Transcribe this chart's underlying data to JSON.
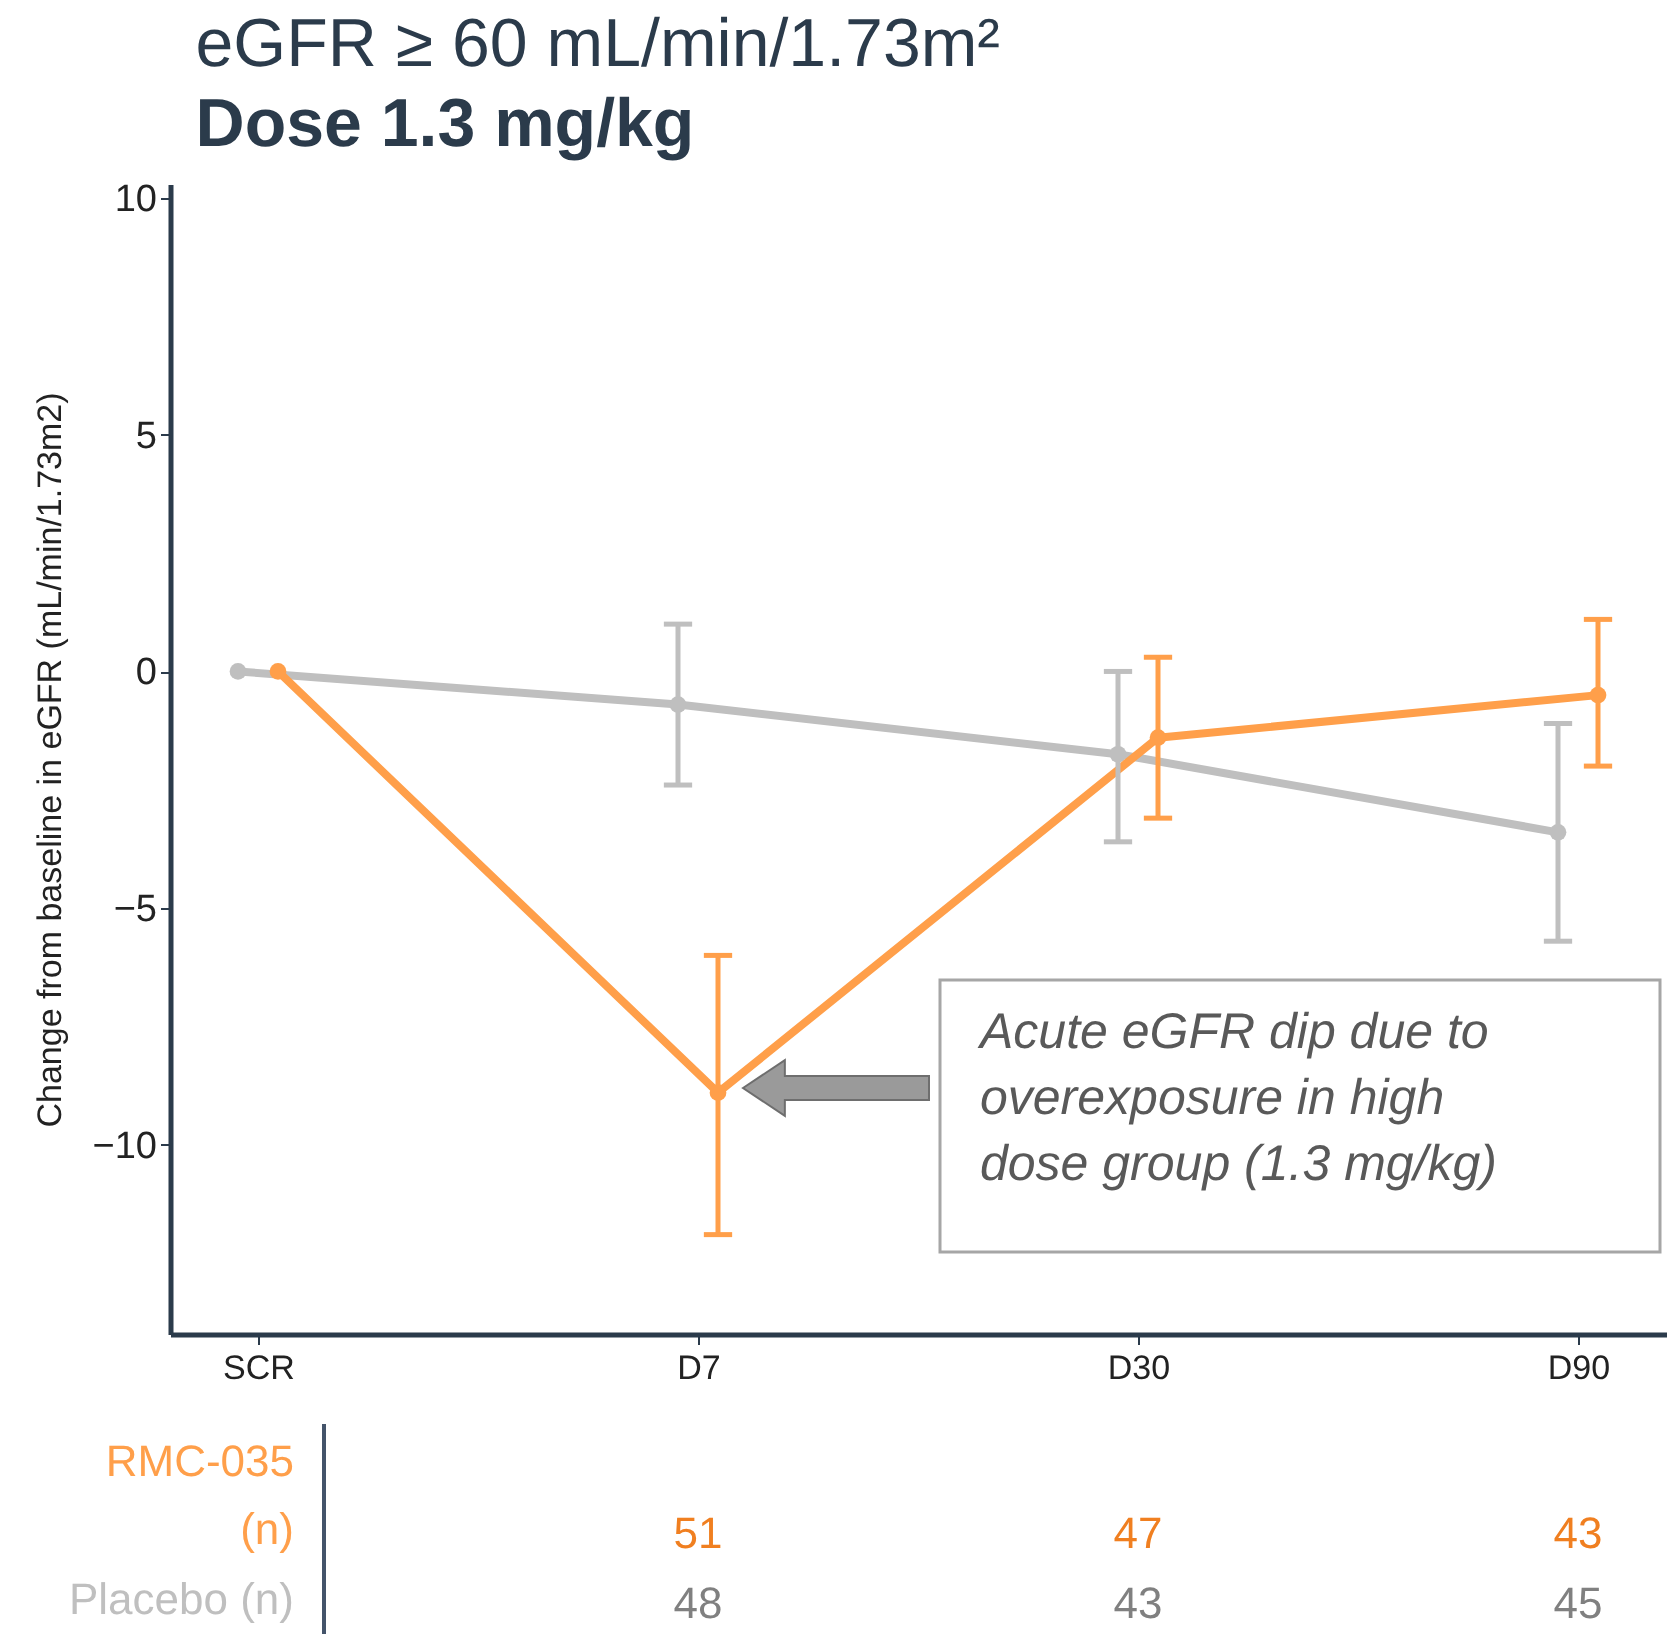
{
  "chart_data": {
    "type": "line",
    "title": "eGFR ≥ 60 mL/min/1.73m²",
    "subtitle": "Dose 1.3 mg/kg",
    "ylabel": "Change from baseline in eGFR  (mL/min/1.73m2)",
    "categories": [
      "SCR",
      "D7",
      "D30",
      "D90"
    ],
    "ylim": [
      -14,
      10.3
    ],
    "yticks": [
      -10,
      -5,
      0,
      5,
      10
    ],
    "grid": false,
    "legend": false,
    "marker": "circle",
    "line_style": "solid",
    "series": [
      {
        "name": "RMC-035 (n)",
        "color": "#ff9f4a",
        "values": [
          0,
          -8.9,
          -1.4,
          -0.5
        ],
        "errors": [
          null,
          [
            -11.9,
            -6.0
          ],
          [
            -3.1,
            0.3
          ],
          [
            -2.0,
            1.1
          ]
        ]
      },
      {
        "name": "Placebo (n)",
        "color": "#bfbfbf",
        "values": [
          0,
          -0.7,
          -1.75,
          -3.4
        ],
        "errors": [
          null,
          [
            -2.4,
            1.0
          ],
          [
            -3.6,
            0.0
          ],
          [
            -5.7,
            -1.1
          ]
        ]
      }
    ],
    "annotations": [
      "Acute eGFR dip due to overexposure in high dose group (1.3 mg/kg)",
      "51",
      "47",
      "43",
      "48",
      "43",
      "45"
    ]
  }
}
